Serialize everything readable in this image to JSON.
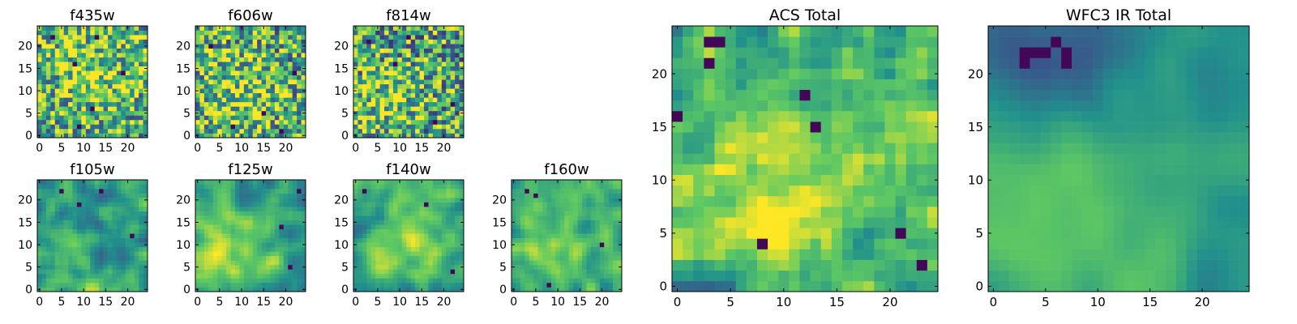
{
  "figure": {
    "colormap": "viridis",
    "colormap_stops": [
      "#440154",
      "#3b528b",
      "#21918c",
      "#5ec962",
      "#fde725"
    ]
  },
  "chart_data": [
    {
      "type": "heatmap",
      "title": "f435w",
      "grid_size": 25,
      "xlim": [
        -0.5,
        24.5
      ],
      "ylim": [
        -0.5,
        24.5
      ],
      "xticks": [
        0,
        5,
        10,
        15,
        20
      ],
      "xtick_labels": [
        "0",
        "5",
        "10",
        "15",
        "20"
      ],
      "yticks": [
        0,
        5,
        10,
        15,
        20
      ],
      "ytick_labels": [
        "0",
        "5",
        "10",
        "15",
        "20"
      ],
      "texture": "noisy",
      "seed": 11,
      "base": 0.62,
      "noise": 0.42,
      "smooth": 0.0,
      "dark_spots": [
        [
          8,
          16
        ],
        [
          13,
          22
        ],
        [
          3,
          22
        ],
        [
          19,
          14
        ],
        [
          9,
          2
        ],
        [
          12,
          6
        ]
      ],
      "bright_area": [
        12,
        14,
        6
      ]
    },
    {
      "type": "heatmap",
      "title": "f606w",
      "grid_size": 25,
      "xlim": [
        -0.5,
        24.5
      ],
      "ylim": [
        -0.5,
        24.5
      ],
      "xticks": [
        0,
        5,
        10,
        15,
        20
      ],
      "xtick_labels": [
        "0",
        "5",
        "10",
        "15",
        "20"
      ],
      "yticks": [
        0,
        5,
        10,
        15,
        20
      ],
      "ytick_labels": [
        "0",
        "5",
        "10",
        "15",
        "20"
      ],
      "texture": "noisy",
      "seed": 23,
      "base": 0.6,
      "noise": 0.45,
      "smooth": 0.0,
      "dark_spots": [
        [
          3,
          20
        ],
        [
          22,
          14
        ],
        [
          8,
          2
        ],
        [
          19,
          1
        ],
        [
          15,
          5
        ]
      ],
      "bright_area": [
        10,
        9,
        7
      ]
    },
    {
      "type": "heatmap",
      "title": "f814w",
      "grid_size": 25,
      "xlim": [
        -0.5,
        24.5
      ],
      "ylim": [
        -0.5,
        24.5
      ],
      "xticks": [
        0,
        5,
        10,
        15,
        20
      ],
      "xtick_labels": [
        "0",
        "5",
        "10",
        "15",
        "20"
      ],
      "yticks": [
        0,
        5,
        10,
        15,
        20
      ],
      "ytick_labels": [
        "0",
        "5",
        "10",
        "15",
        "20"
      ],
      "texture": "noisy",
      "seed": 37,
      "base": 0.58,
      "noise": 0.45,
      "smooth": 0.0,
      "dark_spots": [
        [
          3,
          21
        ],
        [
          9,
          16
        ],
        [
          12,
          22
        ],
        [
          22,
          7
        ],
        [
          18,
          3
        ]
      ],
      "bright_area": [
        7,
        8,
        6
      ]
    },
    {
      "type": "heatmap",
      "title": "f105w",
      "grid_size": 25,
      "xlim": [
        -0.5,
        24.5
      ],
      "ylim": [
        -0.5,
        24.5
      ],
      "xticks": [
        0,
        5,
        10,
        15,
        20
      ],
      "xtick_labels": [
        "0",
        "5",
        "10",
        "15",
        "20"
      ],
      "yticks": [
        0,
        5,
        10,
        15,
        20
      ],
      "ytick_labels": [
        "0",
        "5",
        "10",
        "15",
        "20"
      ],
      "texture": "smooth",
      "seed": 41,
      "base": 0.55,
      "noise": 0.28,
      "smooth": 0.6,
      "dark_spots": [
        [
          5,
          22
        ],
        [
          14,
          22
        ],
        [
          21,
          12
        ],
        [
          9,
          19
        ]
      ],
      "bright_area": [
        5,
        5,
        6
      ]
    },
    {
      "type": "heatmap",
      "title": "f125w",
      "grid_size": 25,
      "xlim": [
        -0.5,
        24.5
      ],
      "ylim": [
        -0.5,
        24.5
      ],
      "xticks": [
        0,
        5,
        10,
        15,
        20
      ],
      "xtick_labels": [
        "0",
        "5",
        "10",
        "15",
        "20"
      ],
      "yticks": [
        0,
        5,
        10,
        15,
        20
      ],
      "ytick_labels": [
        "0",
        "5",
        "10",
        "15",
        "20"
      ],
      "texture": "smooth",
      "seed": 53,
      "base": 0.58,
      "noise": 0.25,
      "smooth": 0.6,
      "dark_spots": [
        [
          23,
          22
        ],
        [
          19,
          14
        ],
        [
          21,
          5
        ]
      ],
      "bright_area": [
        7,
        7,
        7
      ]
    },
    {
      "type": "heatmap",
      "title": "f140w",
      "grid_size": 25,
      "xlim": [
        -0.5,
        24.5
      ],
      "ylim": [
        -0.5,
        24.5
      ],
      "xticks": [
        0,
        5,
        10,
        15,
        20
      ],
      "xtick_labels": [
        "0",
        "5",
        "10",
        "15",
        "20"
      ],
      "yticks": [
        0,
        5,
        10,
        15,
        20
      ],
      "ytick_labels": [
        "0",
        "5",
        "10",
        "15",
        "20"
      ],
      "texture": "smooth",
      "seed": 67,
      "base": 0.58,
      "noise": 0.25,
      "smooth": 0.6,
      "dark_spots": [
        [
          2,
          22
        ],
        [
          16,
          19
        ],
        [
          22,
          4
        ]
      ],
      "bright_area": [
        12,
        12,
        6
      ]
    },
    {
      "type": "heatmap",
      "title": "f160w",
      "grid_size": 25,
      "xlim": [
        -0.5,
        24.5
      ],
      "ylim": [
        -0.5,
        24.5
      ],
      "xticks": [
        0,
        5,
        10,
        15,
        20
      ],
      "xtick_labels": [
        "0",
        "5",
        "10",
        "15",
        "20"
      ],
      "yticks": [
        0,
        5,
        10,
        15,
        20
      ],
      "ytick_labels": [
        "0",
        "5",
        "10",
        "15",
        "20"
      ],
      "texture": "smooth",
      "seed": 79,
      "base": 0.58,
      "noise": 0.22,
      "smooth": 0.6,
      "dark_spots": [
        [
          3,
          22
        ],
        [
          5,
          21
        ],
        [
          20,
          10
        ],
        [
          8,
          1
        ]
      ],
      "bright_area": [
        8,
        9,
        7
      ]
    },
    {
      "type": "heatmap",
      "title": "ACS Total",
      "grid_size": 25,
      "xlim": [
        -0.5,
        24.5
      ],
      "ylim": [
        -0.5,
        24.5
      ],
      "xticks": [
        0,
        5,
        10,
        15,
        20
      ],
      "xtick_labels": [
        "0",
        "5",
        "10",
        "15",
        "20"
      ],
      "yticks": [
        0,
        5,
        10,
        15,
        20
      ],
      "ytick_labels": [
        "0",
        "5",
        "10",
        "15",
        "20"
      ],
      "texture": "noisy",
      "seed": 97,
      "base": 0.6,
      "noise": 0.35,
      "smooth": 0.2,
      "dark_spots": [
        [
          3,
          23
        ],
        [
          4,
          23
        ],
        [
          3,
          21
        ],
        [
          0,
          16
        ],
        [
          8,
          4
        ],
        [
          21,
          5
        ],
        [
          23,
          2
        ],
        [
          13,
          15
        ],
        [
          12,
          18
        ]
      ],
      "bright_area": [
        8,
        8,
        6
      ]
    },
    {
      "type": "heatmap",
      "title": "WFC3 IR Total",
      "grid_size": 25,
      "xlim": [
        -0.5,
        24.5
      ],
      "ylim": [
        -0.5,
        24.5
      ],
      "xticks": [
        0,
        5,
        10,
        15,
        20
      ],
      "xtick_labels": [
        "0",
        "5",
        "10",
        "15",
        "20"
      ],
      "yticks": [
        0,
        5,
        10,
        15,
        20
      ],
      "ytick_labels": [
        "0",
        "5",
        "10",
        "15",
        "20"
      ],
      "texture": "smooth",
      "seed": 131,
      "base": 0.5,
      "noise": 0.12,
      "smooth": 0.85,
      "dark_spots": [
        [
          3,
          22
        ],
        [
          4,
          22
        ],
        [
          5,
          22
        ],
        [
          6,
          23
        ],
        [
          3,
          21
        ],
        [
          7,
          22
        ],
        [
          7,
          21
        ]
      ],
      "dark_region": [
        5,
        22,
        5
      ],
      "bright_area": [
        6,
        6,
        10
      ]
    }
  ]
}
